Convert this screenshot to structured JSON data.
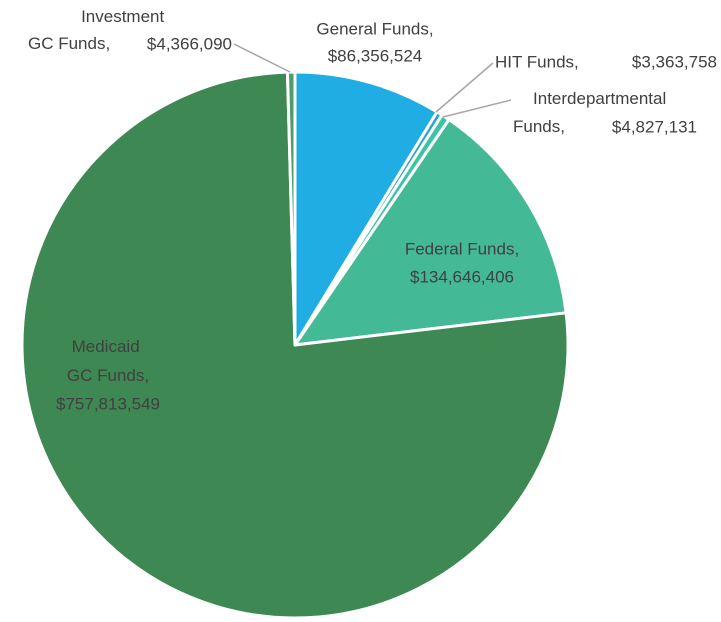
{
  "chart_data": {
    "type": "pie",
    "categories": [
      "General Funds,",
      "HIT Funds,",
      "Interdepartmental Funds,",
      "Federal Funds,",
      "Medicaid GC Funds,",
      "Investment GC Funds,"
    ],
    "values": [
      86356524,
      3363758,
      4827131,
      134646406,
      757813549,
      4366090
    ],
    "value_labels": [
      "$86,356,524",
      "$3,363,758",
      "$4,827,131",
      "$134,646,406",
      "$757,813,549",
      "$4,366,090"
    ],
    "colors": [
      "#1fade4",
      "#2fa3cf",
      "#3dc4a6",
      "#44b995",
      "#3e8853",
      "#4f9d6a"
    ]
  }
}
